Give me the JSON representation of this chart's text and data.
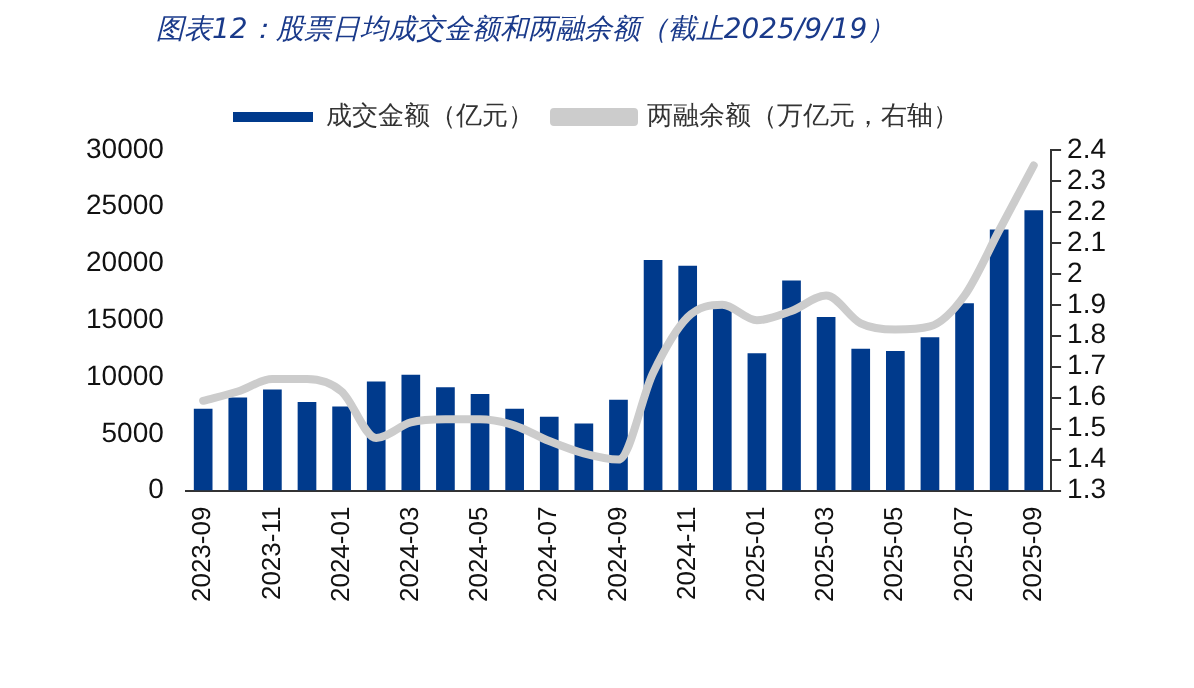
{
  "chart_data": {
    "type": "bar",
    "title": "图表12：股票日均成交金额和两融余额（截止2025/9/19）",
    "categories": [
      "2023-09",
      null,
      "2023-11",
      null,
      "2024-01",
      null,
      "2024-03",
      null,
      "2024-05",
      null,
      "2024-07",
      null,
      "2024-09",
      null,
      "2024-11",
      null,
      "2025-01",
      null,
      "2025-03",
      null,
      "2025-05",
      null,
      "2025-07",
      null,
      "2025-09"
    ],
    "series": [
      {
        "name": "成交金额（亿元）",
        "color": "#003a8c",
        "values": [
          7200,
          8200,
          8900,
          7800,
          7400,
          9600,
          10200,
          9100,
          8500,
          7200,
          6500,
          5900,
          8000,
          20300,
          19800,
          16100,
          12100,
          18500,
          15300,
          12500,
          12300,
          13500,
          16500,
          23000,
          24700
        ]
      },
      {
        "name": "两融余额（万亿元，右轴）",
        "type": "line",
        "axis": "y2",
        "color": "#cccccc",
        "values": [
          1.59,
          1.62,
          1.66,
          1.66,
          1.62,
          1.47,
          1.52,
          1.53,
          1.53,
          1.51,
          1.46,
          1.42,
          1.4,
          1.68,
          1.86,
          1.9,
          1.85,
          1.88,
          1.93,
          1.84,
          1.82,
          1.83,
          1.93,
          2.14,
          2.35
        ]
      }
    ],
    "ylim": [
      0,
      30000
    ],
    "yticks": [
      0,
      5000,
      10000,
      15000,
      20000,
      25000,
      30000
    ],
    "y2lim": [
      1.3,
      2.4
    ],
    "y2ticks": [
      1.3,
      1.4,
      1.5,
      1.6,
      1.7,
      1.8,
      1.9,
      2,
      2.1,
      2.2,
      2.3,
      2.4
    ],
    "legend": "top",
    "grid": false,
    "marker": "none",
    "line_style": "solid"
  }
}
